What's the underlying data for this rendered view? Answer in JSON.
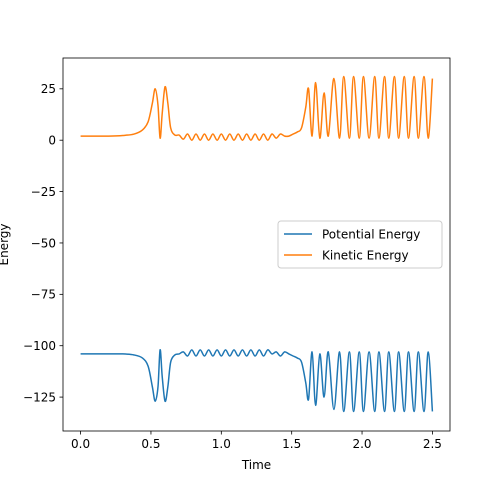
{
  "chart_data": {
    "type": "line",
    "title": "",
    "xlabel": "Time",
    "ylabel": "Energy",
    "xlim": [
      -0.125,
      2.625
    ],
    "ylim": [
      -141.5,
      40
    ],
    "xticks": [
      0.0,
      0.5,
      1.0,
      1.5,
      2.0,
      2.5
    ],
    "xtick_labels": [
      "0.0",
      "0.5",
      "1.0",
      "1.5",
      "2.0",
      "2.5"
    ],
    "yticks": [
      25,
      0,
      -25,
      -50,
      -75,
      -100,
      -125
    ],
    "ytick_labels": [
      "25",
      "0",
      "−25",
      "−50",
      "−75",
      "−100",
      "−125"
    ],
    "grid": false,
    "legend_position": "center-right",
    "series": [
      {
        "name": "Potential Energy",
        "color": "#1f77b4",
        "x": [
          0.0,
          0.1,
          0.2,
          0.3,
          0.38,
          0.44,
          0.48,
          0.51,
          0.53,
          0.55,
          0.565,
          0.58,
          0.6,
          0.62,
          0.64,
          0.67,
          0.7,
          0.73,
          0.76,
          0.79,
          0.82,
          0.85,
          0.88,
          0.91,
          0.94,
          0.97,
          1.0,
          1.03,
          1.06,
          1.09,
          1.12,
          1.15,
          1.18,
          1.21,
          1.24,
          1.27,
          1.3,
          1.33,
          1.36,
          1.39,
          1.42,
          1.45,
          1.48,
          1.51,
          1.54,
          1.57,
          1.6,
          1.62,
          1.645,
          1.67,
          1.7,
          1.73,
          1.76,
          1.8,
          1.84,
          1.87,
          1.91,
          1.94,
          1.98,
          2.01,
          2.05,
          2.09,
          2.12,
          2.16,
          2.19,
          2.23,
          2.26,
          2.3,
          2.33,
          2.37,
          2.4,
          2.44,
          2.47,
          2.5
        ],
        "y": [
          -104,
          -104,
          -104,
          -104,
          -104.5,
          -106,
          -110,
          -120,
          -127,
          -120,
          -102,
          -115,
          -127,
          -120,
          -108,
          -104.5,
          -104,
          -103,
          -105,
          -102,
          -105,
          -102,
          -105,
          -102,
          -105,
          -102,
          -105,
          -102,
          -105,
          -102,
          -105,
          -102,
          -105,
          -102,
          -105,
          -102,
          -105,
          -102,
          -104,
          -103,
          -105,
          -103,
          -104,
          -105,
          -106,
          -108,
          -118,
          -126,
          -103,
          -129,
          -104,
          -125,
          -103,
          -131,
          -103,
          -132,
          -103,
          -132,
          -103,
          -132,
          -103,
          -132,
          -103,
          -132,
          -103,
          -132,
          -103,
          -132,
          -103,
          -132,
          -103,
          -132,
          -103,
          -132
        ]
      },
      {
        "name": "Kinetic Energy",
        "color": "#ff7f0e",
        "x": [
          0.0,
          0.1,
          0.2,
          0.3,
          0.38,
          0.44,
          0.48,
          0.51,
          0.53,
          0.55,
          0.565,
          0.58,
          0.6,
          0.62,
          0.64,
          0.67,
          0.7,
          0.73,
          0.76,
          0.79,
          0.82,
          0.85,
          0.88,
          0.91,
          0.94,
          0.97,
          1.0,
          1.03,
          1.06,
          1.09,
          1.12,
          1.15,
          1.18,
          1.21,
          1.24,
          1.27,
          1.3,
          1.33,
          1.36,
          1.39,
          1.42,
          1.45,
          1.48,
          1.51,
          1.54,
          1.57,
          1.6,
          1.62,
          1.645,
          1.67,
          1.7,
          1.73,
          1.76,
          1.8,
          1.84,
          1.87,
          1.91,
          1.94,
          1.98,
          2.01,
          2.05,
          2.09,
          2.12,
          2.16,
          2.19,
          2.23,
          2.26,
          2.3,
          2.33,
          2.37,
          2.4,
          2.44,
          2.47,
          2.5
        ],
        "y": [
          2,
          2,
          2,
          2.3,
          3,
          5,
          9,
          18,
          25,
          17,
          1,
          13,
          26,
          18,
          6,
          2.5,
          2.5,
          0.5,
          3,
          0,
          3,
          0,
          3,
          0,
          3,
          0,
          3,
          0,
          3,
          0,
          3,
          0,
          3,
          0,
          3,
          0,
          3,
          0,
          3,
          1,
          3,
          2,
          2,
          3,
          4,
          6,
          16,
          25,
          2,
          28,
          1,
          23,
          2,
          30,
          1,
          31,
          1,
          31,
          1,
          31,
          1,
          31,
          1,
          31,
          1,
          31,
          1,
          31,
          1,
          31,
          1,
          31,
          1,
          30
        ]
      }
    ]
  }
}
